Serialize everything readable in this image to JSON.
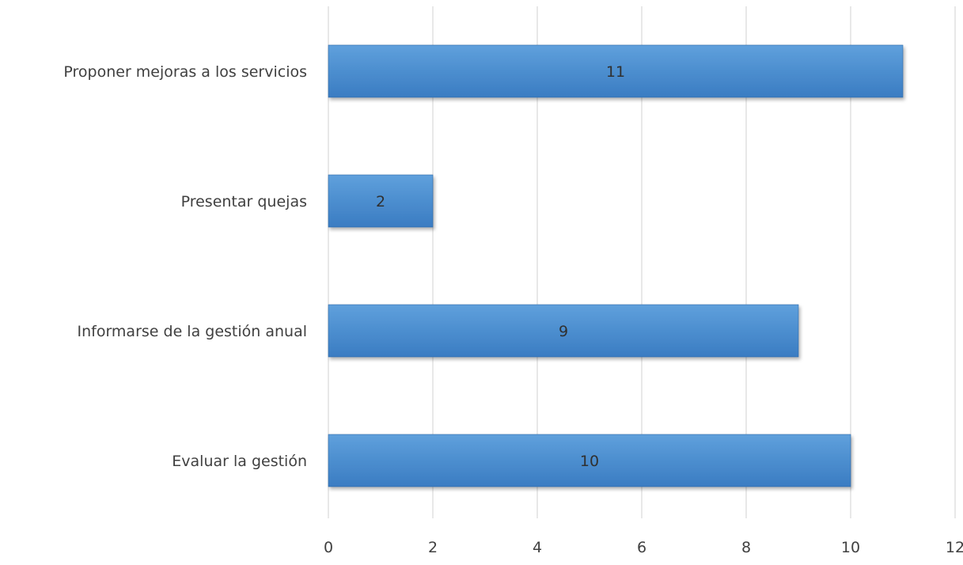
{
  "chart_data": {
    "type": "bar",
    "orientation": "horizontal",
    "categories": [
      "Proponer mejoras a los servicios",
      "Presentar quejas",
      "Informarse de la gestión anual",
      "Evaluar la gestión"
    ],
    "values": [
      11,
      2,
      9,
      10
    ],
    "xlim": [
      0,
      12
    ],
    "x_ticks": [
      "0",
      "2",
      "4",
      "6",
      "8",
      "10",
      "12"
    ],
    "grid": "vertical",
    "data_labels": true,
    "title": "",
    "xlabel": "",
    "ylabel": "",
    "colors": {
      "bar_light": "#5fa0dc",
      "bar_dark": "#3a7cc2",
      "bar_edge": "#2f6aa8",
      "grid": "#d9d9d9",
      "label": "#404040",
      "value_label": "#303030"
    }
  }
}
